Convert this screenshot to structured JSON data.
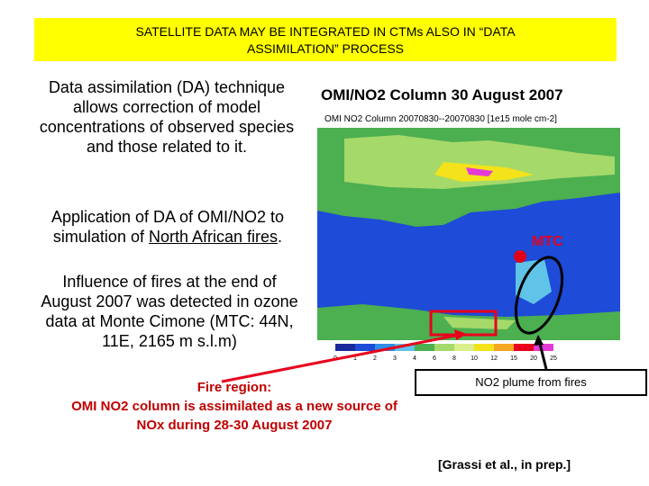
{
  "banner": {
    "line1": "SATELLITE DATA MAY BE INTEGRATED IN CTMs ALSO IN “DATA",
    "line2": "ASSIMILATION” PROCESS"
  },
  "left_text": {
    "para1": "Data assimilation (DA) technique allows correction of model concentrations of observed species and those related to it.",
    "para2_start": "Application of DA of OMI/NO2 to simulation of ",
    "para2_link": "North African fires",
    "para2_end": ".",
    "para3": "Influence of fires at the end of August 2007 was detected in ozone data at Monte Cimone (MTC: 44N, 11E, 2165 m s.l.m)"
  },
  "map": {
    "title": "OMI/NO2 Column 30 August 2007",
    "header": "OMI NO2 Column 20070830--20070830 [1e15 mole cm-2]",
    "colorbar_ticks": [
      "0",
      "1",
      "2",
      "3",
      "4",
      "6",
      "8",
      "10",
      "12",
      "15",
      "20",
      "25"
    ],
    "colors": {
      "land_green": "#4caf50",
      "sea_blue": "#1e4bd8",
      "high_yellow": "#f4e21b",
      "very_high_magenta": "#e43ad7"
    }
  },
  "labels": {
    "mtc": "MTC",
    "plume": "NO2 plume from fires",
    "fire_line1": "Fire region:",
    "fire_line2": "OMI NO2 column is assimilated as a new source of",
    "fire_line3": "NOx during 28-30 August 2007",
    "citation": "[Grassi et al., in prep.]"
  }
}
